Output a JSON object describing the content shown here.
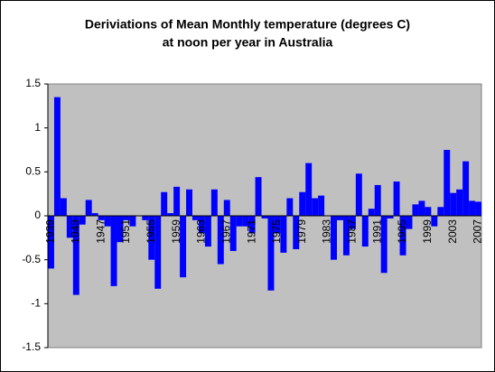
{
  "chart_data": {
    "type": "bar",
    "title": [
      "Deriviations of Mean Monthly temperature (degrees C)",
      "at noon per year in Australia"
    ],
    "categories": [
      "1939",
      null,
      null,
      null,
      "1943",
      null,
      null,
      null,
      "1947",
      null,
      null,
      null,
      "1951",
      null,
      null,
      null,
      "1955",
      null,
      null,
      null,
      "1959",
      null,
      null,
      null,
      "1963",
      null,
      null,
      null,
      "1967",
      null,
      null,
      null,
      "1971",
      null,
      null,
      null,
      "1975",
      null,
      null,
      null,
      "1979",
      null,
      null,
      null,
      "1983",
      null,
      null,
      null,
      "1987",
      null,
      null,
      null,
      "1991",
      null,
      null,
      null,
      "1995",
      null,
      null,
      null,
      "1999",
      null,
      null,
      null,
      "2003",
      null,
      null,
      null,
      "2007"
    ],
    "values": [
      -0.6,
      1.35,
      0.2,
      -0.25,
      -0.9,
      -0.1,
      0.18,
      0.03,
      -0.05,
      -0.12,
      -0.8,
      -0.3,
      -0.05,
      -0.12,
      0.0,
      -0.05,
      -0.5,
      -0.83,
      0.27,
      0.03,
      0.33,
      -0.7,
      0.3,
      -0.05,
      -0.2,
      -0.35,
      0.3,
      -0.55,
      0.18,
      -0.4,
      -0.12,
      -0.12,
      -0.2,
      0.44,
      -0.03,
      -0.85,
      -0.2,
      -0.42,
      0.2,
      -0.38,
      0.27,
      0.6,
      0.2,
      0.23,
      0.0,
      -0.5,
      -0.05,
      -0.45,
      -0.15,
      0.48,
      -0.35,
      0.08,
      0.35,
      -0.65,
      -0.03,
      0.39,
      -0.45,
      -0.15,
      0.13,
      0.17,
      0.1,
      -0.12,
      0.1,
      0.75,
      0.26,
      0.3,
      0.62,
      0.17,
      0.16
    ],
    "color": "#0000ff",
    "plot_background": "#c0c0c0",
    "ylim": [
      -1.5,
      1.5
    ],
    "yticks": [
      -1.5,
      -1,
      -0.5,
      0,
      0.5,
      1,
      1.5
    ]
  }
}
